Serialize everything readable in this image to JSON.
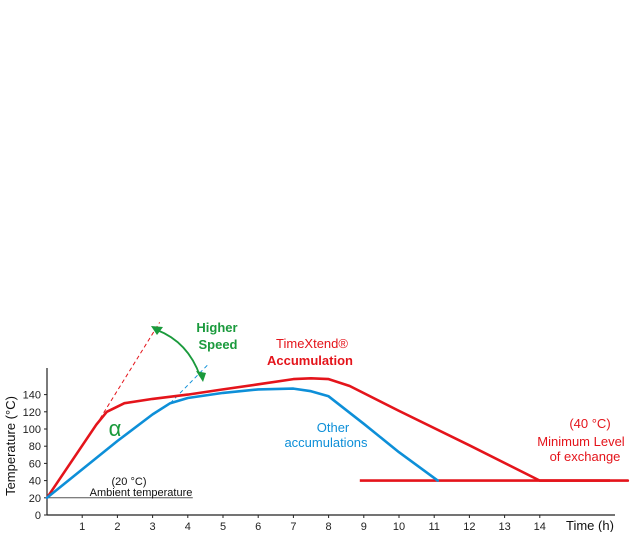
{
  "chart_data": {
    "type": "line",
    "xlabel": "Time (h)",
    "ylabel": "Temperature  (°C)",
    "xlim": [
      0,
      16.5
    ],
    "ylim": [
      0,
      160
    ],
    "x_ticks": [
      1,
      2,
      3,
      4,
      5,
      6,
      7,
      8,
      9,
      10,
      11,
      12,
      13,
      14
    ],
    "y_ticks": [
      0,
      20,
      40,
      60,
      80,
      100,
      120,
      140
    ],
    "grid": false,
    "series": [
      {
        "label": "TimeXtend® Accumulation",
        "color": "#e4141b",
        "x": [
          0,
          1.4,
          1.7,
          2.2,
          3,
          4,
          5,
          6,
          7,
          7.5,
          8,
          8.6,
          10,
          12,
          14,
          16.5
        ],
        "y": [
          20,
          105,
          120,
          130,
          135,
          140,
          146,
          152,
          158,
          159,
          158,
          150,
          121,
          81,
          40,
          40
        ]
      },
      {
        "label": "Other accumulations",
        "color": "#0d8fd8",
        "x": [
          0,
          1,
          2,
          3,
          3.5,
          4,
          5,
          6,
          7,
          7.5,
          8,
          9,
          10,
          11.1
        ],
        "y": [
          20,
          53,
          86,
          117,
          130,
          136,
          142,
          146,
          147,
          144,
          138,
          106,
          73,
          40
        ]
      }
    ],
    "reference_lines": [
      {
        "label": "(20 °C)",
        "sublabel": "Ambient temperature",
        "y": 20,
        "x": [
          0,
          4
        ],
        "color": "#555555"
      },
      {
        "label": "(40 °C)",
        "sublabel": [
          "Minimum Level",
          "of exchange"
        ],
        "y": 40,
        "x": [
          9,
          16.5
        ],
        "color": "#e4141b"
      }
    ],
    "extensions": [
      {
        "color": "#e4141b",
        "x": [
          1.4,
          3.2
        ],
        "y": [
          105,
          224
        ]
      },
      {
        "color": "#0d8fd8",
        "x": [
          3.5,
          4.6
        ],
        "y": [
          130,
          176
        ]
      }
    ],
    "annotations": {
      "timextend": {
        "line1": "TimeXtend®",
        "line2": "Accumulation",
        "color": "#e4141b"
      },
      "other": {
        "line1": "Other",
        "line2": "accumulations",
        "color": "#0d8fd8"
      },
      "higher_speed": {
        "line1": "Higher",
        "line2": "Speed",
        "color": "#1a9a3c"
      },
      "alpha": {
        "text": "α",
        "color": "#1a9a3c"
      }
    }
  }
}
